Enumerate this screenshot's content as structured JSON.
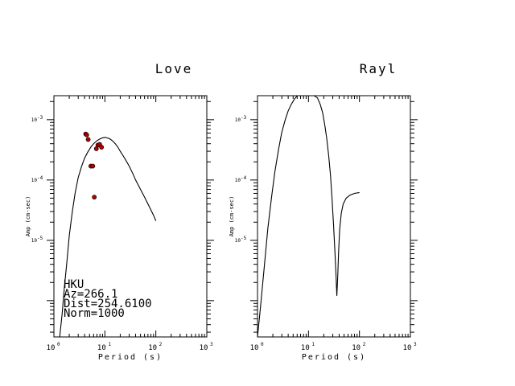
{
  "chart_data": [
    {
      "type": "line",
      "title": "Love",
      "xlabel": "Period (s)",
      "ylabel": "Amp (cm-sec)",
      "xscale": "log",
      "yscale": "log",
      "xlim": [
        1,
        1000
      ],
      "ylim": [
        2.5e-07,
        0.0025
      ],
      "xticks": [
        {
          "base": "10",
          "exp": "0",
          "value": 1
        },
        {
          "base": "10",
          "exp": "1",
          "value": 10
        },
        {
          "base": "10",
          "exp": "2",
          "value": 100
        },
        {
          "base": "10",
          "exp": "3",
          "value": 1000
        }
      ],
      "yticks": [
        {
          "base": "10",
          "exp": "-5",
          "value": 1e-05
        },
        {
          "base": "10",
          "exp": "-4",
          "value": 0.0001
        },
        {
          "base": "10",
          "exp": "-3",
          "value": 0.001
        }
      ],
      "annotation": [
        "HKU",
        "Az=266.1",
        "Dist=254.6100",
        "Norm=1000"
      ],
      "series": [
        {
          "kind": "line",
          "x": [
            1.3,
            1.45,
            1.6,
            1.8,
            2.0,
            2.3,
            2.6,
            3.0,
            3.5,
            4.0,
            4.6,
            5.3,
            6.0,
            7.0,
            8.0,
            9.0,
            10.0,
            11.0,
            12.5,
            14.0,
            16.0,
            18.0,
            20.0,
            23.0,
            26.0,
            30.0,
            35.0,
            40.0,
            50.0,
            60.0,
            70.0,
            80.0,
            90.0,
            100.0
          ],
          "y": [
            2.5e-07,
            6e-07,
            1.6e-06,
            4.5e-06,
            1.2e-05,
            3e-05,
            6e-05,
            0.00011,
            0.00017,
            0.00023,
            0.00029,
            0.00035,
            0.0004,
            0.00045,
            0.00048,
            0.0005,
            0.00051,
            0.0005,
            0.00048,
            0.00045,
            0.0004,
            0.00035,
            0.0003,
            0.00025,
            0.00021,
            0.00017,
            0.00013,
            0.0001,
            7e-05,
            5.2e-05,
            4e-05,
            3.2e-05,
            2.6e-05,
            2.1e-05
          ]
        },
        {
          "kind": "scatter",
          "color": "#b00000",
          "x": [
            4.2,
            4.4,
            4.7,
            5.3,
            6.2,
            6.8,
            7.3,
            7.9,
            8.6,
            5.8
          ],
          "y": [
            0.00058,
            0.00056,
            0.00047,
            0.00017,
            5.2e-05,
            0.00033,
            0.00038,
            0.00039,
            0.00035,
            0.00017
          ]
        }
      ]
    },
    {
      "type": "line",
      "title": "Rayl",
      "xlabel": "Period (s)",
      "ylabel": "Amp (cm-sec)",
      "xscale": "log",
      "yscale": "log",
      "xlim": [
        1,
        1000
      ],
      "ylim": [
        2.5e-07,
        0.0025
      ],
      "xticks": [
        {
          "base": "10",
          "exp": "0",
          "value": 1
        },
        {
          "base": "10",
          "exp": "1",
          "value": 10
        },
        {
          "base": "10",
          "exp": "2",
          "value": 100
        },
        {
          "base": "10",
          "exp": "3",
          "value": 1000
        }
      ],
      "yticks": [
        {
          "base": "10",
          "exp": "-5",
          "value": 1e-05
        },
        {
          "base": "10",
          "exp": "-4",
          "value": 0.0001
        },
        {
          "base": "10",
          "exp": "-3",
          "value": 0.001
        }
      ],
      "series": [
        {
          "kind": "line",
          "x": [
            1.0,
            1.15,
            1.35,
            1.6,
            1.9,
            2.2,
            2.6,
            3.0,
            3.5,
            4.0,
            4.6,
            5.3,
            6.0,
            7.0,
            8.0,
            9.0,
            10.0,
            11.5,
            13.0,
            15.0,
            17.0,
            19.0,
            21.0,
            23.0,
            25.0,
            27.0,
            29.0,
            31.0,
            33.0,
            34.5,
            36.0,
            37.5,
            39.0,
            41.0,
            44.0,
            48.0,
            55.0,
            65.0,
            80.0,
            100.0
          ],
          "y": [
            2.5e-07,
            8e-07,
            3.5e-06,
            1.6e-05,
            5.5e-05,
            0.00014,
            0.00033,
            0.00062,
            0.001,
            0.0014,
            0.0018,
            0.0022,
            0.0025,
            0.0028,
            0.0029,
            0.003,
            0.003,
            0.0029,
            0.0027,
            0.0023,
            0.0018,
            0.0013,
            0.0008,
            0.00047,
            0.00025,
            0.00012,
            5e-05,
            1.8e-05,
            6.5e-06,
            3e-06,
            1.2e-06,
            2.5e-06,
            6.5e-06,
            1.5e-05,
            2.8e-05,
            4e-05,
            5e-05,
            5.6e-05,
            6e-05,
            6.2e-05
          ]
        }
      ]
    }
  ]
}
